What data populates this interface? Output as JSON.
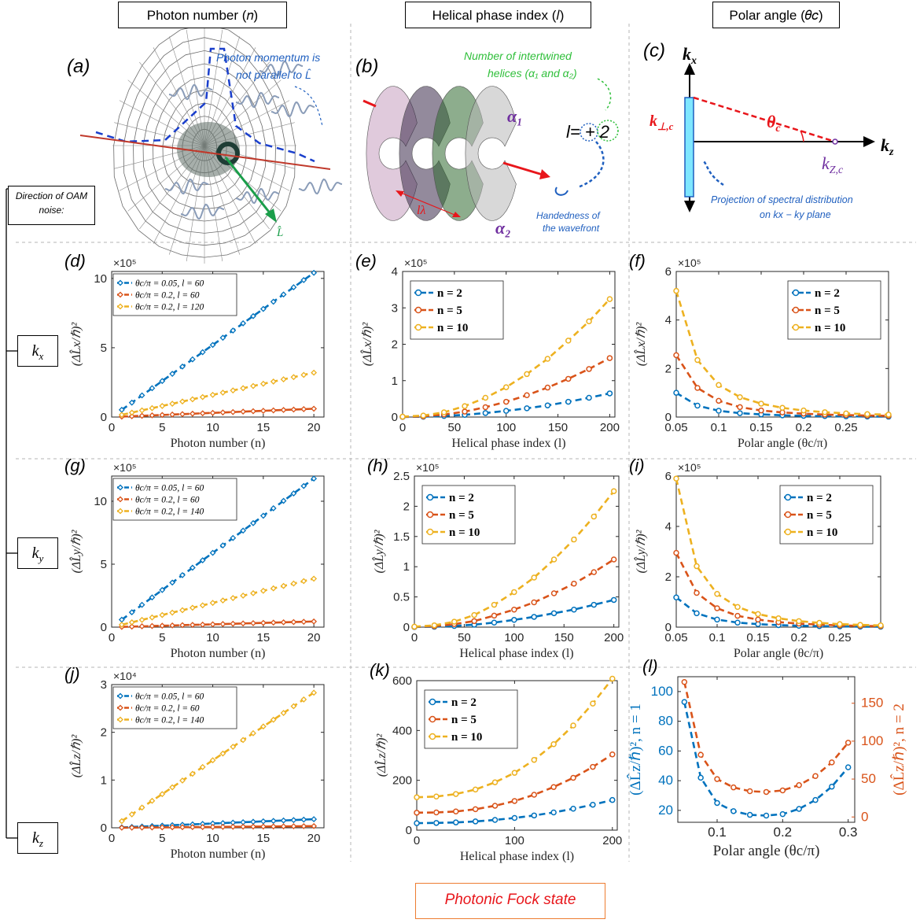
{
  "headers": {
    "col1": "Photon number (𝑛)",
    "col2": "Helical phase index (𝑙)",
    "col3": "Polar angle (𝜃𝑐)"
  },
  "direction_label": "Direction of OAM noise:",
  "footer": "Photonic Fock state",
  "row_labels": {
    "kx": "k",
    "kx_sub": "x",
    "ky": "k",
    "ky_sub": "y",
    "kz": "k",
    "kz_sub": "z"
  },
  "panel_a": {
    "letter": "(a)",
    "note_line1": "Photon momentum is",
    "note_line2": "not parallel to L̂",
    "vector_label": "L̂",
    "colors": {
      "note": "#1f5fbf",
      "vector": "#1a9e4a",
      "momentum": "#1a3fcc",
      "waves": "#8a9cb8"
    }
  },
  "panel_b": {
    "letter": "(b)",
    "note_line1": "Number of intertwined",
    "note_line2": "helices (α₁ and α₂)",
    "alpha1": "α₁",
    "alpha2": "α₂",
    "l_eq": "l= + 2",
    "lambda": "lλ",
    "hand_line1": "Handedness of",
    "hand_line2": "the wavefront",
    "colors": {
      "note": "#2fbf3a",
      "alpha": "#7030a0",
      "hand": "#1f5fbf"
    }
  },
  "panel_c": {
    "letter": "(c)",
    "kx": "k",
    "kx_sub": "x",
    "kz": "k",
    "kz_sub": "z",
    "kperp": "k",
    "kperp_sub": "⊥,c",
    "theta": "θ",
    "theta_sub": "c",
    "kzc": "k",
    "kzc_sub": "Z,c",
    "proj_line1": "Projection of spectral distribution",
    "proj_line2": "on kx − ky plane",
    "colors": {
      "red": "#e8161b",
      "purple": "#7030a0",
      "proj": "#1f5fbf",
      "bar": "#7fe7ff"
    }
  },
  "colors": {
    "blue": "#0072BD",
    "orange": "#D95319",
    "yellow": "#EDB120"
  },
  "chart_data": [
    {
      "id": "d",
      "letter": "(d)",
      "type": "line",
      "exponent": "×10⁵",
      "xlabel": "Photon number (n)",
      "ylabel": "(ΔL̂x/ℏ)²",
      "xlim": [
        0,
        21
      ],
      "ylim": [
        0,
        10.5
      ],
      "xticks": [
        0,
        5,
        10,
        15,
        20
      ],
      "yticks": [
        0,
        5,
        10
      ],
      "legend": "top-left",
      "legend_style": "small",
      "series": [
        {
          "name": "θc/π = 0.05, l = 60",
          "color": "#0072BD",
          "x": [
            1,
            20
          ],
          "y": [
            0.52,
            10.4
          ],
          "marker_step": 1
        },
        {
          "name": "θc/π = 0.2, l = 60",
          "color": "#D95319",
          "x": [
            1,
            20
          ],
          "y": [
            0.03,
            0.6
          ],
          "marker_step": 1
        },
        {
          "name": "θc/π = 0.2, l = 120",
          "color": "#EDB120",
          "x": [
            1,
            20
          ],
          "y": [
            0.16,
            3.2
          ],
          "marker_step": 1
        }
      ]
    },
    {
      "id": "e",
      "letter": "(e)",
      "type": "line",
      "exponent": "×10⁵",
      "xlabel": "Helical phase index (l)",
      "ylabel": "(ΔL̂x/ℏ)²",
      "xlim": [
        0,
        205
      ],
      "ylim": [
        0,
        4
      ],
      "xticks": [
        0,
        50,
        100,
        150,
        200
      ],
      "yticks": [
        0,
        1,
        2,
        3,
        4
      ],
      "legend": "top-left",
      "legend_style": "bold",
      "series": [
        {
          "name": "n = 2",
          "color": "#0072BD",
          "x": [
            0,
            20,
            40,
            60,
            80,
            100,
            120,
            140,
            160,
            180,
            200
          ],
          "y": [
            0.003,
            0.009,
            0.03,
            0.06,
            0.11,
            0.17,
            0.24,
            0.32,
            0.42,
            0.53,
            0.65
          ]
        },
        {
          "name": "n = 5",
          "color": "#D95319",
          "x": [
            0,
            20,
            40,
            60,
            80,
            100,
            120,
            140,
            160,
            180,
            200
          ],
          "y": [
            0.007,
            0.02,
            0.07,
            0.15,
            0.27,
            0.42,
            0.6,
            0.81,
            1.05,
            1.32,
            1.62
          ]
        },
        {
          "name": "n = 10",
          "color": "#EDB120",
          "x": [
            0,
            20,
            40,
            60,
            80,
            100,
            120,
            140,
            160,
            180,
            200
          ],
          "y": [
            0.01,
            0.04,
            0.13,
            0.3,
            0.53,
            0.82,
            1.18,
            1.6,
            2.1,
            2.63,
            3.24
          ]
        }
      ]
    },
    {
      "id": "f",
      "letter": "(f)",
      "type": "line",
      "exponent": "×10⁵",
      "xlabel": "Polar angle (θc/π)",
      "ylabel": "(ΔL̂x/ℏ)²",
      "xlim": [
        0.05,
        0.3
      ],
      "ylim": [
        0,
        6
      ],
      "xticks": [
        0.05,
        0.1,
        0.15,
        0.2,
        0.25
      ],
      "yticks": [
        0,
        2,
        4,
        6
      ],
      "legend": "top-right",
      "legend_style": "bold",
      "series": [
        {
          "name": "n = 2",
          "color": "#0072BD",
          "x": [
            0.05,
            0.075,
            0.1,
            0.125,
            0.15,
            0.175,
            0.2,
            0.225,
            0.25,
            0.275,
            0.3
          ],
          "y": [
            1.0,
            0.47,
            0.26,
            0.16,
            0.11,
            0.07,
            0.05,
            0.04,
            0.03,
            0.02,
            0.015
          ]
        },
        {
          "name": "n = 5",
          "color": "#D95319",
          "x": [
            0.05,
            0.075,
            0.1,
            0.125,
            0.15,
            0.175,
            0.2,
            0.225,
            0.25,
            0.275,
            0.3
          ],
          "y": [
            2.55,
            1.2,
            0.67,
            0.41,
            0.27,
            0.19,
            0.14,
            0.1,
            0.08,
            0.06,
            0.05
          ]
        },
        {
          "name": "n = 10",
          "color": "#EDB120",
          "x": [
            0.05,
            0.075,
            0.1,
            0.125,
            0.15,
            0.175,
            0.2,
            0.225,
            0.25,
            0.275,
            0.3
          ],
          "y": [
            5.2,
            2.35,
            1.32,
            0.82,
            0.55,
            0.38,
            0.27,
            0.2,
            0.15,
            0.12,
            0.1
          ]
        }
      ]
    },
    {
      "id": "g",
      "letter": "(g)",
      "type": "line",
      "exponent": "×10⁵",
      "xlabel": "Photon number (n)",
      "ylabel": "(ΔL̂y/ℏ)²",
      "xlim": [
        0,
        21
      ],
      "ylim": [
        0,
        12
      ],
      "xticks": [
        0,
        5,
        10,
        15,
        20
      ],
      "yticks": [
        0,
        5,
        10
      ],
      "legend": "top-left",
      "legend_style": "small",
      "series": [
        {
          "name": "θc/π = 0.05, l = 60",
          "color": "#0072BD",
          "x": [
            1,
            20
          ],
          "y": [
            0.59,
            11.8
          ],
          "marker_step": 1
        },
        {
          "name": "θc/π = 0.2, l = 60",
          "color": "#D95319",
          "x": [
            1,
            20
          ],
          "y": [
            0.02,
            0.45
          ],
          "marker_step": 1
        },
        {
          "name": "θc/π = 0.2, l = 140",
          "color": "#EDB120",
          "x": [
            1,
            20
          ],
          "y": [
            0.19,
            3.85
          ],
          "marker_step": 1
        }
      ]
    },
    {
      "id": "h",
      "letter": "(h)",
      "type": "line",
      "exponent": "×10⁵",
      "xlabel": "Helical phase index (l)",
      "ylabel": "(ΔL̂y/ℏ)²",
      "xlim": [
        0,
        205
      ],
      "ylim": [
        0,
        2.5
      ],
      "xticks": [
        0,
        50,
        100,
        150,
        200
      ],
      "yticks": [
        0,
        0.5,
        1,
        1.5,
        2,
        2.5
      ],
      "legend": "top-left",
      "legend_style": "bold",
      "series": [
        {
          "name": "n = 2",
          "color": "#0072BD",
          "x": [
            0,
            20,
            40,
            60,
            80,
            100,
            120,
            140,
            160,
            180,
            200
          ],
          "y": [
            0.002,
            0.006,
            0.02,
            0.04,
            0.075,
            0.12,
            0.17,
            0.23,
            0.29,
            0.37,
            0.45
          ]
        },
        {
          "name": "n = 5",
          "color": "#D95319",
          "x": [
            0,
            20,
            40,
            60,
            80,
            100,
            120,
            140,
            160,
            180,
            200
          ],
          "y": [
            0.005,
            0.015,
            0.05,
            0.1,
            0.19,
            0.29,
            0.41,
            0.56,
            0.72,
            0.91,
            1.12
          ]
        },
        {
          "name": "n = 10",
          "color": "#EDB120",
          "x": [
            0,
            20,
            40,
            60,
            80,
            100,
            120,
            140,
            160,
            180,
            200
          ],
          "y": [
            0.008,
            0.03,
            0.09,
            0.2,
            0.37,
            0.58,
            0.82,
            1.12,
            1.45,
            1.83,
            2.25
          ]
        }
      ]
    },
    {
      "id": "i",
      "letter": "(i)",
      "type": "line",
      "exponent": "×10⁵",
      "xlabel": "Polar angle (θc/π)",
      "ylabel": "(ΔL̂y/ℏ)²",
      "xlim": [
        0.05,
        0.3
      ],
      "ylim": [
        0,
        6
      ],
      "xticks": [
        0.05,
        0.1,
        0.15,
        0.2,
        0.25
      ],
      "yticks": [
        0,
        2,
        4,
        6
      ],
      "legend": "top-right",
      "legend_style": "bold",
      "series": [
        {
          "name": "n = 2",
          "color": "#0072BD",
          "x": [
            0.05,
            0.075,
            0.1,
            0.125,
            0.15,
            0.175,
            0.2,
            0.225,
            0.25,
            0.275,
            0.3
          ],
          "y": [
            1.18,
            0.55,
            0.3,
            0.18,
            0.12,
            0.08,
            0.055,
            0.04,
            0.03,
            0.02,
            0.015
          ]
        },
        {
          "name": "n = 5",
          "color": "#D95319",
          "x": [
            0.05,
            0.075,
            0.1,
            0.125,
            0.15,
            0.175,
            0.2,
            0.225,
            0.25,
            0.275,
            0.3
          ],
          "y": [
            2.95,
            1.36,
            0.75,
            0.45,
            0.3,
            0.2,
            0.14,
            0.1,
            0.07,
            0.05,
            0.04
          ]
        },
        {
          "name": "n = 10",
          "color": "#EDB120",
          "x": [
            0.05,
            0.075,
            0.1,
            0.125,
            0.15,
            0.175,
            0.2,
            0.225,
            0.25,
            0.275,
            0.3
          ],
          "y": [
            5.9,
            2.42,
            1.32,
            0.8,
            0.52,
            0.35,
            0.24,
            0.17,
            0.12,
            0.09,
            0.07
          ]
        }
      ]
    },
    {
      "id": "j",
      "letter": "(j)",
      "type": "line",
      "exponent": "×10⁴",
      "xlabel": "Photon number (n)",
      "ylabel": "(ΔL̂z/ℏ)²",
      "xlim": [
        0,
        21
      ],
      "ylim": [
        0,
        3
      ],
      "xticks": [
        0,
        5,
        10,
        15,
        20
      ],
      "yticks": [
        0,
        1,
        2,
        3
      ],
      "legend": "top-left",
      "legend_style": "small",
      "series": [
        {
          "name": "θc/π = 0.05, l = 60",
          "color": "#0072BD",
          "x": [
            1,
            20
          ],
          "y": [
            0.009,
            0.18
          ],
          "marker_step": 1
        },
        {
          "name": "θc/π = 0.2, l = 60",
          "color": "#D95319",
          "x": [
            1,
            20
          ],
          "y": [
            0.002,
            0.035
          ],
          "marker_step": 1
        },
        {
          "name": "θc/π = 0.2, l = 140",
          "color": "#EDB120",
          "x": [
            1,
            20
          ],
          "y": [
            0.14,
            2.83
          ],
          "marker_step": 1
        }
      ]
    },
    {
      "id": "k",
      "letter": "(k)",
      "type": "line",
      "exponent": "",
      "xlabel": "Helical phase index (l)",
      "ylabel": "(ΔL̂z/ℏ)²",
      "xlim": [
        0,
        205
      ],
      "ylim": [
        0,
        600
      ],
      "xticks": [
        0,
        100,
        200
      ],
      "yticks": [
        0,
        200,
        400,
        600
      ],
      "legend": "top-left",
      "legend_style": "bold",
      "series": [
        {
          "name": "n = 2",
          "color": "#0072BD",
          "x": [
            0,
            20,
            40,
            60,
            80,
            100,
            120,
            140,
            160,
            180,
            200
          ],
          "y": [
            28,
            29,
            31,
            35,
            41,
            49,
            59,
            71,
            86,
            102,
            121
          ]
        },
        {
          "name": "n = 5",
          "color": "#D95319",
          "x": [
            0,
            20,
            40,
            60,
            80,
            100,
            120,
            140,
            160,
            180,
            200
          ],
          "y": [
            70,
            71,
            75,
            84,
            98,
            117,
            142,
            173,
            210,
            254,
            304
          ]
        },
        {
          "name": "n = 10",
          "color": "#EDB120",
          "x": [
            0,
            20,
            40,
            60,
            80,
            100,
            120,
            140,
            160,
            180,
            200
          ],
          "y": [
            132,
            135,
            145,
            163,
            192,
            230,
            282,
            345,
            420,
            508,
            608
          ]
        }
      ]
    },
    {
      "id": "l",
      "letter": "(l)",
      "type": "line",
      "exponent": "",
      "xlabel": "Polar angle (θc/π)",
      "ylabel_left": "(ΔL̂z/ℏ)², n = 1",
      "ylabel_right": "(ΔL̂z/ℏ)², n = 2",
      "xlim": [
        0.04,
        0.31
      ],
      "ylim_left": [
        12,
        110
      ],
      "ylim_right": [
        -7,
        185
      ],
      "xticks": [
        0.1,
        0.2,
        0.3
      ],
      "yticks_left": [
        20,
        40,
        60,
        80,
        100
      ],
      "yticks_right": [
        0,
        50,
        100,
        150
      ],
      "series": [
        {
          "name": "n = 1",
          "axis": "left",
          "color": "#0072BD",
          "x": [
            0.05,
            0.075,
            0.1,
            0.125,
            0.15,
            0.175,
            0.2,
            0.225,
            0.25,
            0.275,
            0.3
          ],
          "y": [
            93,
            42,
            25,
            19.5,
            17,
            16.5,
            17.5,
            21,
            27,
            36,
            49
          ]
        },
        {
          "name": "n = 2",
          "axis": "right",
          "color": "#D95319",
          "x": [
            0.05,
            0.075,
            0.1,
            0.125,
            0.15,
            0.175,
            0.2,
            0.225,
            0.25,
            0.275,
            0.3
          ],
          "y": [
            178,
            82,
            50,
            39,
            34,
            33,
            35,
            42,
            54,
            72,
            98
          ]
        }
      ]
    }
  ]
}
